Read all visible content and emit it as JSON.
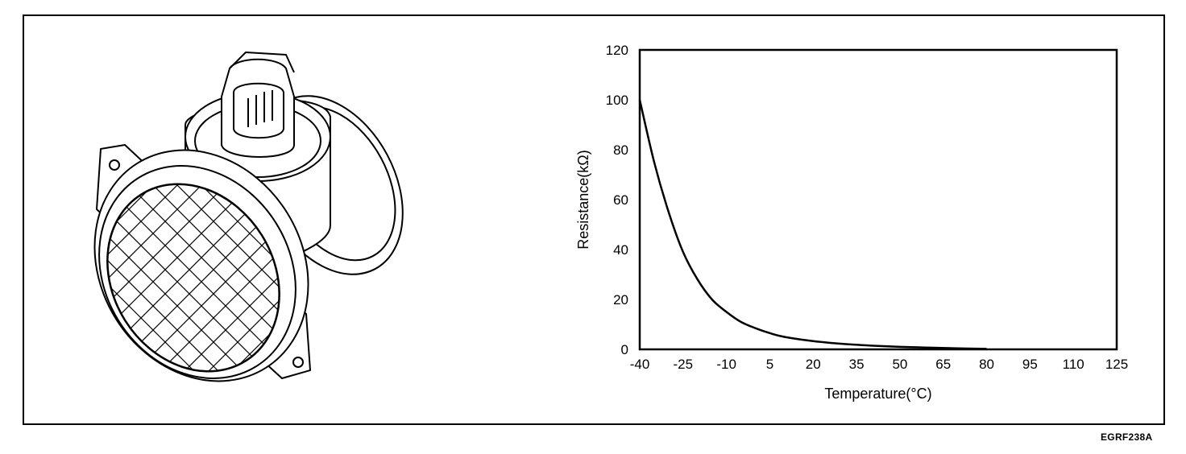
{
  "figure_code": "EGRF238A",
  "illustration": {
    "icon": "mass-air-flow-sensor-icon"
  },
  "chart_data": {
    "type": "line",
    "title": "",
    "xlabel": "Temperature(°C)",
    "ylabel": "Resistance(kΩ)",
    "xlim": [
      -40,
      125
    ],
    "ylim": [
      0,
      120
    ],
    "x_ticks": [
      -40,
      -25,
      -10,
      5,
      20,
      35,
      50,
      65,
      80,
      95,
      110,
      125
    ],
    "y_ticks": [
      0,
      20,
      40,
      60,
      80,
      100,
      120
    ],
    "grid": false,
    "legend": "none",
    "series": [
      {
        "x": [
          -40,
          -35,
          -30,
          -25,
          -20,
          -15,
          -10,
          -5,
          0,
          5,
          10,
          20,
          30,
          40,
          50,
          60,
          70,
          80
        ],
        "y": [
          100,
          75,
          55,
          39,
          28,
          20,
          15,
          11,
          8.5,
          6.5,
          5,
          3.3,
          2.2,
          1.5,
          1.0,
          0.7,
          0.4,
          0.2
        ]
      }
    ]
  }
}
